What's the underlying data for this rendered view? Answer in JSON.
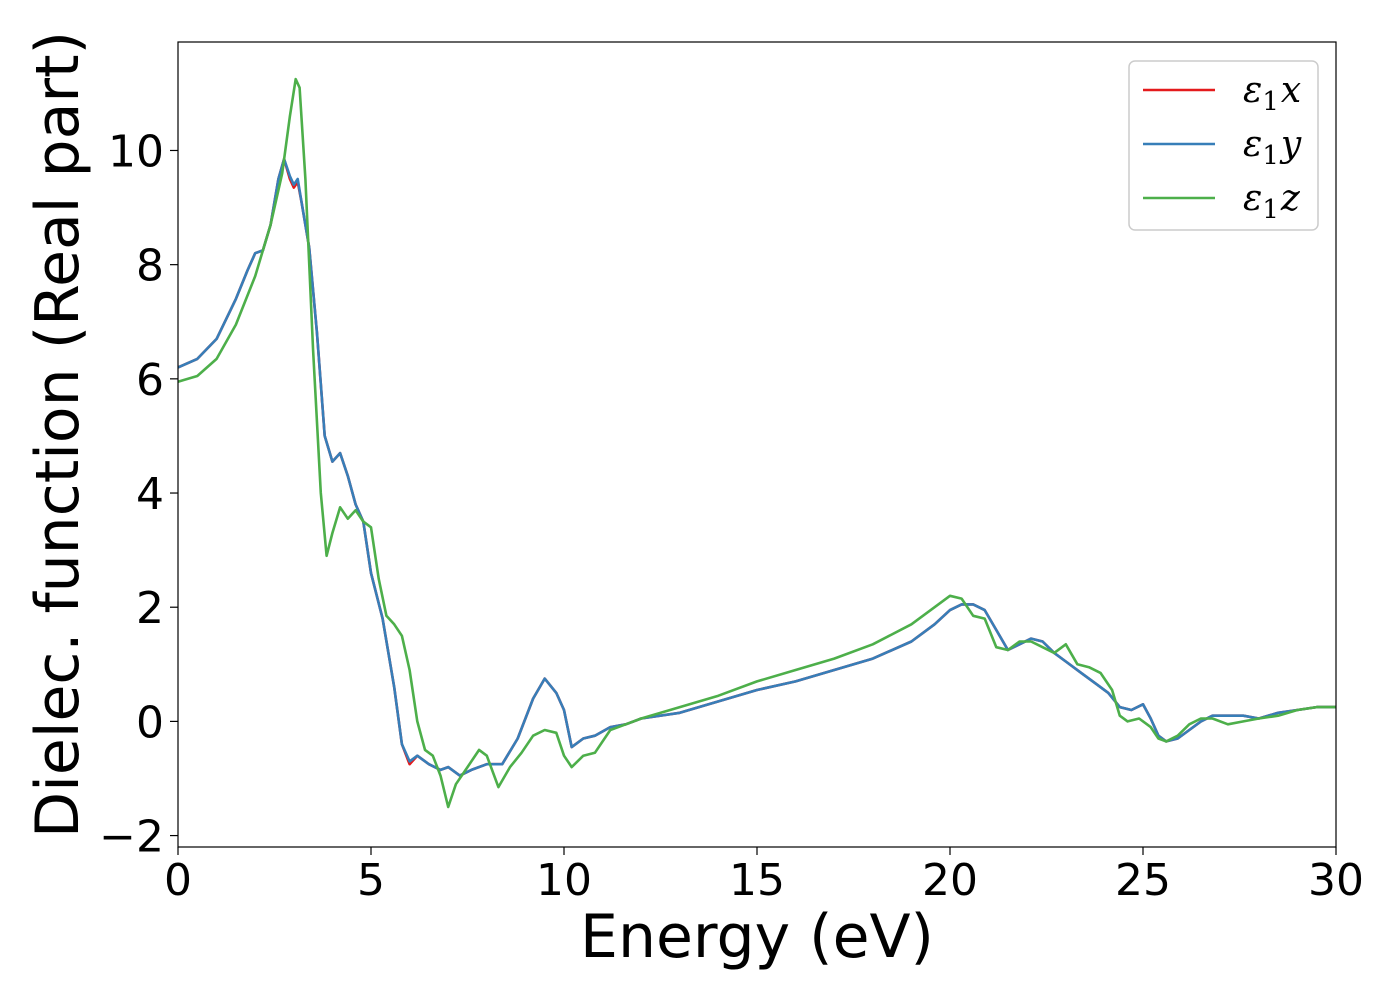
{
  "chart_data": {
    "type": "line",
    "xlabel": "Energy (eV)",
    "ylabel": "Dielec. function (Real part)",
    "xlim": [
      0,
      30
    ],
    "ylim": [
      -2.2,
      11.9
    ],
    "xticks": [
      0,
      5,
      10,
      15,
      20,
      25,
      30
    ],
    "xtick_labels": [
      "0",
      "5",
      "10",
      "15",
      "20",
      "25",
      "30"
    ],
    "yticks": [
      -2,
      0,
      2,
      4,
      6,
      8,
      10
    ],
    "ytick_labels": [
      "−2",
      "0",
      "2",
      "4",
      "6",
      "8",
      "10"
    ],
    "grid": false,
    "legend": "top-right",
    "series": [
      {
        "name": "ε₁x",
        "legend_base": "ε",
        "legend_sub": "1",
        "legend_var": "x",
        "color": "#e41a1c",
        "x": [
          0,
          0.5,
          1.0,
          1.5,
          1.8,
          2.0,
          2.2,
          2.4,
          2.6,
          2.75,
          2.9,
          3.0,
          3.1,
          3.2,
          3.4,
          3.6,
          3.8,
          4.0,
          4.2,
          4.4,
          4.6,
          4.8,
          5.0,
          5.3,
          5.6,
          5.8,
          6.0,
          6.2,
          6.5,
          6.8,
          7.0,
          7.3,
          7.6,
          8.0,
          8.4,
          8.8,
          9.2,
          9.5,
          9.8,
          10.0,
          10.2,
          10.5,
          10.8,
          11.2,
          11.6,
          12.0,
          13.0,
          14.0,
          15.0,
          16.0,
          17.0,
          18.0,
          19.0,
          19.6,
          20.0,
          20.3,
          20.6,
          20.9,
          21.2,
          21.5,
          21.8,
          22.1,
          22.4,
          22.7,
          23.0,
          23.4,
          23.8,
          24.1,
          24.4,
          24.7,
          25.0,
          25.2,
          25.4,
          25.6,
          25.9,
          26.2,
          26.5,
          26.8,
          27.2,
          27.6,
          28.0,
          28.5,
          29.0,
          29.5,
          30.0
        ],
        "y": [
          6.2,
          6.35,
          6.7,
          7.4,
          7.9,
          8.2,
          8.25,
          8.7,
          9.5,
          9.85,
          9.5,
          9.35,
          9.45,
          9.1,
          8.3,
          6.8,
          5.0,
          4.55,
          4.7,
          4.3,
          3.8,
          3.5,
          2.6,
          1.8,
          0.6,
          -0.4,
          -0.75,
          -0.6,
          -0.75,
          -0.85,
          -0.8,
          -0.95,
          -0.85,
          -0.75,
          -0.75,
          -0.3,
          0.4,
          0.75,
          0.5,
          0.2,
          -0.45,
          -0.3,
          -0.25,
          -0.1,
          -0.05,
          0.05,
          0.15,
          0.35,
          0.55,
          0.7,
          0.9,
          1.1,
          1.4,
          1.7,
          1.95,
          2.05,
          2.05,
          1.95,
          1.6,
          1.25,
          1.35,
          1.45,
          1.4,
          1.2,
          1.05,
          0.85,
          0.65,
          0.5,
          0.25,
          0.2,
          0.3,
          0.05,
          -0.25,
          -0.35,
          -0.3,
          -0.15,
          0.0,
          0.1,
          0.1,
          0.1,
          0.05,
          0.15,
          0.2,
          0.25,
          0.25
        ]
      },
      {
        "name": "ε₁y",
        "legend_base": "ε",
        "legend_sub": "1",
        "legend_var": "y",
        "color": "#377eb8",
        "x": [
          0,
          0.5,
          1.0,
          1.5,
          1.8,
          2.0,
          2.2,
          2.4,
          2.6,
          2.75,
          2.9,
          3.0,
          3.1,
          3.2,
          3.4,
          3.6,
          3.8,
          4.0,
          4.2,
          4.4,
          4.6,
          4.8,
          5.0,
          5.3,
          5.6,
          5.8,
          6.0,
          6.2,
          6.5,
          6.8,
          7.0,
          7.3,
          7.6,
          8.0,
          8.4,
          8.8,
          9.2,
          9.5,
          9.8,
          10.0,
          10.2,
          10.5,
          10.8,
          11.2,
          11.6,
          12.0,
          13.0,
          14.0,
          15.0,
          16.0,
          17.0,
          18.0,
          19.0,
          19.6,
          20.0,
          20.3,
          20.6,
          20.9,
          21.2,
          21.5,
          21.8,
          22.1,
          22.4,
          22.7,
          23.0,
          23.4,
          23.8,
          24.1,
          24.4,
          24.7,
          25.0,
          25.2,
          25.4,
          25.6,
          25.9,
          26.2,
          26.5,
          26.8,
          27.2,
          27.6,
          28.0,
          28.5,
          29.0,
          29.5,
          30.0
        ],
        "y": [
          6.2,
          6.35,
          6.7,
          7.4,
          7.9,
          8.2,
          8.25,
          8.7,
          9.5,
          9.85,
          9.55,
          9.4,
          9.5,
          9.1,
          8.3,
          6.8,
          5.0,
          4.55,
          4.7,
          4.3,
          3.8,
          3.5,
          2.6,
          1.8,
          0.6,
          -0.4,
          -0.7,
          -0.6,
          -0.75,
          -0.85,
          -0.8,
          -0.95,
          -0.85,
          -0.75,
          -0.75,
          -0.3,
          0.4,
          0.75,
          0.5,
          0.2,
          -0.45,
          -0.3,
          -0.25,
          -0.1,
          -0.05,
          0.05,
          0.15,
          0.35,
          0.55,
          0.7,
          0.9,
          1.1,
          1.4,
          1.7,
          1.95,
          2.05,
          2.05,
          1.95,
          1.6,
          1.25,
          1.35,
          1.45,
          1.4,
          1.2,
          1.05,
          0.85,
          0.65,
          0.5,
          0.25,
          0.2,
          0.3,
          0.05,
          -0.25,
          -0.35,
          -0.3,
          -0.15,
          0.0,
          0.1,
          0.1,
          0.1,
          0.05,
          0.15,
          0.2,
          0.25,
          0.25
        ]
      },
      {
        "name": "ε₁z",
        "legend_base": "ε",
        "legend_sub": "1",
        "legend_var": "z",
        "color": "#4daf4a",
        "x": [
          0,
          0.5,
          1.0,
          1.5,
          2.0,
          2.4,
          2.7,
          2.9,
          3.05,
          3.15,
          3.3,
          3.5,
          3.7,
          3.85,
          4.0,
          4.2,
          4.4,
          4.6,
          4.8,
          5.0,
          5.2,
          5.4,
          5.6,
          5.8,
          6.0,
          6.2,
          6.4,
          6.6,
          6.8,
          7.0,
          7.2,
          7.5,
          7.8,
          8.0,
          8.3,
          8.6,
          8.9,
          9.2,
          9.5,
          9.8,
          10.0,
          10.2,
          10.5,
          10.8,
          11.2,
          11.6,
          12.0,
          13.0,
          14.0,
          15.0,
          16.0,
          17.0,
          18.0,
          19.0,
          19.6,
          20.0,
          20.3,
          20.6,
          20.9,
          21.2,
          21.5,
          21.8,
          22.1,
          22.4,
          22.7,
          23.0,
          23.3,
          23.6,
          23.9,
          24.2,
          24.4,
          24.6,
          24.9,
          25.2,
          25.4,
          25.6,
          25.9,
          26.2,
          26.5,
          26.8,
          27.2,
          27.6,
          28.0,
          28.5,
          29.0,
          29.5,
          30.0
        ],
        "y": [
          5.95,
          6.05,
          6.35,
          6.95,
          7.8,
          8.7,
          9.6,
          10.6,
          11.25,
          11.1,
          9.5,
          6.5,
          4.0,
          2.9,
          3.3,
          3.75,
          3.55,
          3.7,
          3.5,
          3.4,
          2.5,
          1.85,
          1.7,
          1.5,
          0.9,
          0.0,
          -0.5,
          -0.6,
          -0.95,
          -1.5,
          -1.1,
          -0.8,
          -0.5,
          -0.6,
          -1.15,
          -0.8,
          -0.55,
          -0.25,
          -0.15,
          -0.2,
          -0.6,
          -0.8,
          -0.6,
          -0.55,
          -0.15,
          -0.05,
          0.05,
          0.25,
          0.45,
          0.7,
          0.9,
          1.1,
          1.35,
          1.7,
          2.0,
          2.2,
          2.15,
          1.85,
          1.8,
          1.3,
          1.25,
          1.4,
          1.4,
          1.3,
          1.2,
          1.35,
          1.0,
          0.95,
          0.85,
          0.55,
          0.1,
          0.0,
          0.05,
          -0.1,
          -0.3,
          -0.35,
          -0.25,
          -0.05,
          0.05,
          0.05,
          -0.05,
          0.0,
          0.05,
          0.1,
          0.2,
          0.25,
          0.25
        ]
      }
    ]
  }
}
